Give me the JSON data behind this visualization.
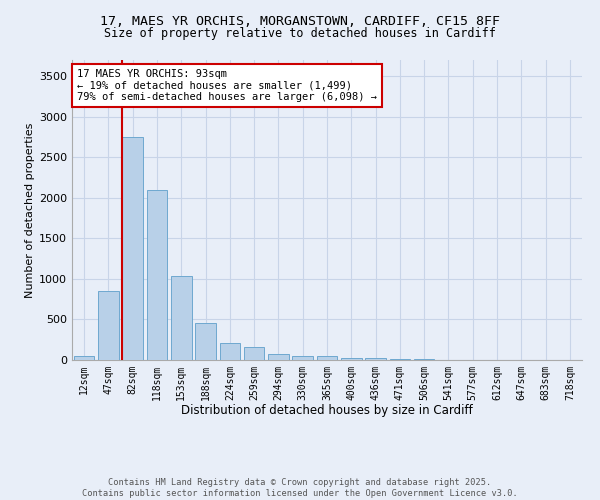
{
  "title_line1": "17, MAES YR ORCHIS, MORGANSTOWN, CARDIFF, CF15 8FF",
  "title_line2": "Size of property relative to detached houses in Cardiff",
  "xlabel": "Distribution of detached houses by size in Cardiff",
  "ylabel": "Number of detached properties",
  "bar_labels": [
    "12sqm",
    "47sqm",
    "82sqm",
    "118sqm",
    "153sqm",
    "188sqm",
    "224sqm",
    "259sqm",
    "294sqm",
    "330sqm",
    "365sqm",
    "400sqm",
    "436sqm",
    "471sqm",
    "506sqm",
    "541sqm",
    "577sqm",
    "612sqm",
    "647sqm",
    "683sqm",
    "718sqm"
  ],
  "bar_values": [
    55,
    850,
    2750,
    2100,
    1030,
    460,
    215,
    155,
    75,
    55,
    45,
    30,
    20,
    15,
    8,
    5,
    4,
    3,
    2,
    2,
    2
  ],
  "bar_color": "#b8d0e8",
  "bar_edge_color": "#6ea8d0",
  "highlight_bar_index": 2,
  "red_line_color": "#cc0000",
  "annotation_title": "17 MAES YR ORCHIS: 93sqm",
  "annotation_line1": "← 19% of detached houses are smaller (1,499)",
  "annotation_line2": "79% of semi-detached houses are larger (6,098) →",
  "annotation_box_color": "#ffffff",
  "annotation_box_edge": "#cc0000",
  "ylim": [
    0,
    3700
  ],
  "yticks": [
    0,
    500,
    1000,
    1500,
    2000,
    2500,
    3000,
    3500
  ],
  "grid_color": "#c8d4e8",
  "background_color": "#e8eef8",
  "footer_line1": "Contains HM Land Registry data © Crown copyright and database right 2025.",
  "footer_line2": "Contains public sector information licensed under the Open Government Licence v3.0."
}
